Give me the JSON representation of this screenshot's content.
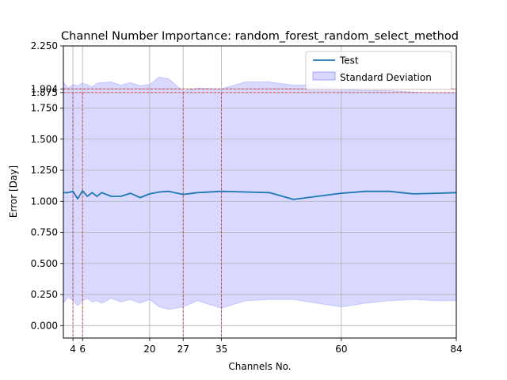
{
  "chart_data": {
    "type": "line",
    "title": "Channel Number Importance: random_forest_random_select_method",
    "xlabel": "Channels No.",
    "ylabel": "Error [Day]",
    "xlim": [
      2,
      84
    ],
    "ylim": [
      -0.1,
      2.25
    ],
    "xticks": [
      4,
      6,
      20,
      27,
      35,
      60,
      84
    ],
    "yticks": [
      0.0,
      0.25,
      0.5,
      0.75,
      1.0,
      1.25,
      1.5,
      1.75,
      1.875,
      1.904,
      2.25
    ],
    "ytick_labels": [
      "0.000",
      "0.250",
      "0.500",
      "0.750",
      "1.000",
      "1.250",
      "1.500",
      "1.750",
      "1.875",
      "1.904",
      "2.250"
    ],
    "grid": true,
    "legend": {
      "position": "upper right",
      "entries": [
        "Test",
        "Standard Deviation"
      ]
    },
    "colors": {
      "line": "#1f77b4",
      "band": "#0000ff",
      "reference": "#d62728",
      "grid": "#b0b0b0"
    },
    "series": [
      {
        "name": "Test",
        "x": [
          2,
          3,
          4,
          5,
          6,
          7,
          8,
          9,
          10,
          12,
          14,
          16,
          18,
          20,
          22,
          24,
          27,
          30,
          35,
          40,
          45,
          50,
          55,
          60,
          65,
          70,
          75,
          80,
          84
        ],
        "values": [
          1.07,
          1.07,
          1.08,
          1.02,
          1.085,
          1.04,
          1.07,
          1.04,
          1.07,
          1.04,
          1.04,
          1.065,
          1.03,
          1.06,
          1.075,
          1.08,
          1.055,
          1.07,
          1.08,
          1.075,
          1.07,
          1.015,
          1.04,
          1.065,
          1.08,
          1.08,
          1.06,
          1.065,
          1.07
        ]
      }
    ],
    "std_band": {
      "name": "Standard Deviation",
      "x": [
        2,
        3,
        4,
        5,
        6,
        7,
        8,
        9,
        10,
        12,
        14,
        16,
        18,
        20,
        22,
        24,
        27,
        30,
        35,
        40,
        45,
        50,
        55,
        60,
        65,
        70,
        75,
        80,
        84
      ],
      "upper": [
        1.96,
        1.91,
        1.94,
        1.93,
        1.95,
        1.94,
        1.92,
        1.95,
        1.955,
        1.96,
        1.935,
        1.955,
        1.93,
        1.94,
        2.0,
        1.985,
        1.885,
        1.91,
        1.905,
        1.96,
        1.96,
        1.935,
        1.94,
        1.9,
        1.89,
        1.89,
        1.88,
        1.87,
        1.87
      ],
      "lower": [
        0.18,
        0.23,
        0.2,
        0.16,
        0.2,
        0.22,
        0.19,
        0.2,
        0.18,
        0.22,
        0.19,
        0.21,
        0.18,
        0.21,
        0.15,
        0.13,
        0.15,
        0.2,
        0.14,
        0.2,
        0.21,
        0.21,
        0.18,
        0.15,
        0.18,
        0.2,
        0.21,
        0.2,
        0.2
      ]
    },
    "reference_lines": {
      "vertical_x": [
        4,
        6,
        27,
        35
      ],
      "horizontal_y": [
        1.875,
        1.904
      ]
    }
  }
}
